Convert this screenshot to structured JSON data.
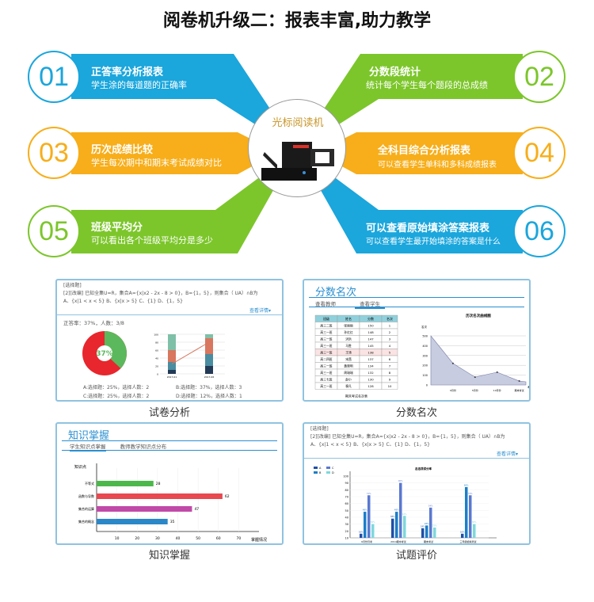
{
  "title": "阅卷机升级二：报表丰富,助力教学",
  "colors": {
    "blue": "#1ba6dc",
    "orange": "#f7ae1a",
    "green": "#7cc62b"
  },
  "center": {
    "label": "光标阅读机",
    "icon": "omr-scanner-machine"
  },
  "features": [
    {
      "num": "01",
      "title": "正答率分析报表",
      "desc": "学生涂的每道题的正确率",
      "color": "#1ba6dc"
    },
    {
      "num": "02",
      "title": "分数段统计",
      "desc": "统计每个学生每个题段的总成绩",
      "color": "#7cc62b"
    },
    {
      "num": "03",
      "title": "历次成绩比较",
      "desc": "学生每次期中和期末考试成绩对比",
      "color": "#f7ae1a"
    },
    {
      "num": "04",
      "title": "全科目综合分析报表",
      "desc": "可以查看学生单科和多科成绩报表",
      "color": "#f7ae1a"
    },
    {
      "num": "05",
      "title": "班级平均分",
      "desc": "可以看出各个班级平均分是多少",
      "color": "#7cc62b"
    },
    {
      "num": "06",
      "title": "可以查看原始填涂答案报表",
      "desc": "可以查看学生最开始填涂的答案是什么",
      "color": "#1ba6dc"
    }
  ],
  "question": {
    "tag": "[选择题]",
    "line1": "[2][改编] 已知全集U=R，集合A={x|x2 - 2x - 8 > 0}，B={1，5}，则集合（   UA）∩B为",
    "line2": "A、{x|1 < x < 5}     B、{x|x > 5}     C、{1}     D、{1，5}",
    "details": "查看详情▾"
  },
  "panel1": {
    "caption": "试卷分析",
    "summary": "正答率：37%，人数：3/8",
    "donut_label": "37%",
    "correct_pct": 37,
    "options": [
      "A:选择题：25%，选择人数：2",
      "B:选择题：37%，选择人数：3",
      "C:选择题：25%，选择人数：2",
      "D:选择题：12%，选择人数：1"
    ],
    "stack": {
      "yticks": [
        "0",
        "20",
        "40",
        "60",
        "80",
        "100"
      ],
      "categories": [
        "2017-01",
        "2017-06"
      ],
      "segments": [
        [
          10,
          20,
          30,
          40
        ],
        [
          20,
          30,
          40,
          10
        ]
      ],
      "line": [
        25,
        80
      ]
    }
  },
  "panel2": {
    "caption": "分数名次",
    "title": "分数名次",
    "tabs": [
      "查看教师",
      "查看学生"
    ],
    "table": {
      "headers": [
        "班级",
        "姓名",
        "分数",
        "名次"
      ],
      "rows": [
        [
          "高三二班",
          "张丽丽",
          "150",
          "1"
        ],
        [
          "高三一班",
          "孙红红",
          "148",
          "2"
        ],
        [
          "高三一班",
          "洪洪",
          "147",
          "3"
        ],
        [
          "高三一班",
          "马胜",
          "145",
          "4"
        ],
        [
          "高三一班",
          "王涛",
          "138",
          "5"
        ],
        [
          "高二四班",
          "宋茜",
          "137",
          "6"
        ],
        [
          "高三一班",
          "黄晓明",
          "134",
          "7"
        ],
        [
          "高三一班",
          "周瑞瑞",
          "132",
          "8"
        ],
        [
          "高三七班",
          "赵小",
          "130",
          "9"
        ],
        [
          "高三一班",
          "穆凡",
          "128",
          "10"
        ]
      ],
      "caption": "期末考试名次表"
    },
    "chart_data": {
      "type": "area",
      "title": "历次名次曲线图",
      "ylabel": "名次",
      "xlabel": "考试",
      "yticks": [
        0,
        100,
        200,
        300,
        400,
        500
      ],
      "x": [
        "",
        "9月份",
        "5月份",
        "10月份",
        "期末考试"
      ],
      "values": [
        500,
        220,
        80,
        130,
        40
      ]
    }
  },
  "panel3": {
    "caption": "知识掌握",
    "title": "知识掌握",
    "tabs": [
      "学生知识点掌握",
      "教师教学知识点分布"
    ],
    "chart_data": {
      "type": "bar",
      "orientation": "horizontal",
      "ylabel": "知识点",
      "xlabel": "掌握情况",
      "categories": [
        "不等式",
        "函数与导数",
        "集合的运算",
        "集合的概念"
      ],
      "values": [
        28,
        62,
        47,
        35
      ],
      "colors": [
        "#4cb84c",
        "#e84850",
        "#c04aa8",
        "#2a88c8"
      ],
      "xticks": [
        10,
        20,
        30,
        40,
        50,
        60,
        70
      ],
      "xlim": [
        0,
        80
      ]
    }
  },
  "panel4": {
    "caption": "试题评价",
    "chart_data": {
      "type": "bar",
      "title": "各选项得分率",
      "categories": [
        "9月份月考",
        "2014期中考试",
        "期末考试",
        "三年级模拟测试"
      ],
      "yticks": [
        10,
        20,
        30,
        40,
        50,
        60,
        70,
        80,
        90,
        100
      ],
      "ylim": [
        10,
        100
      ],
      "series": [
        {
          "name": "A",
          "color": "#1f4fa8",
          "values": [
            16,
            38,
            24,
            16
          ]
        },
        {
          "name": "B",
          "color": "#1c7ec8",
          "values": [
            48,
            48,
            28,
            84
          ]
        },
        {
          "name": "C",
          "color": "#5a78d0",
          "values": [
            72,
            90,
            54,
            72
          ]
        },
        {
          "name": "D",
          "color": "#7dd8dc",
          "values": [
            30,
            42,
            25,
            30
          ]
        }
      ]
    }
  }
}
